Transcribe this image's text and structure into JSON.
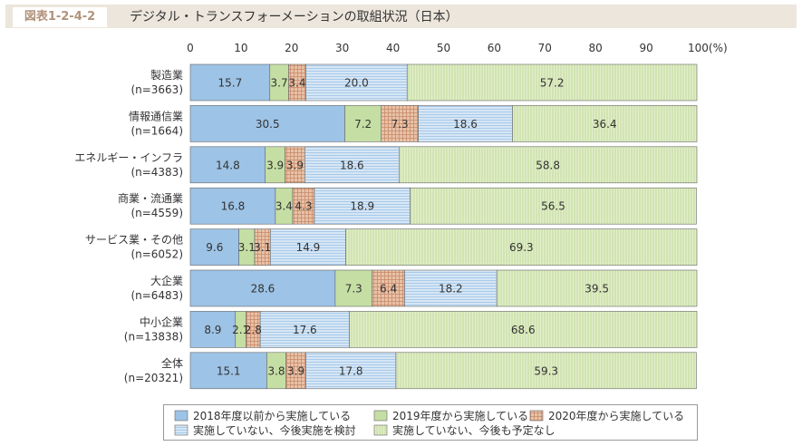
{
  "figure_number": "図表1-2-4-2",
  "figure_title": "デジタル・トランスフォーメーションの取組状況（日本）",
  "colors": {
    "s2018": "#9dc3e6",
    "s2019": "#c5dea4",
    "s2020": "#e8c2a8",
    "considering": "#d6e6f5",
    "none": "#e2eecb",
    "header_bg": "#ece6dc",
    "label_accent": "#b1927a"
  },
  "chart_data": {
    "type": "bar",
    "orientation": "horizontal",
    "stacked": true,
    "x_ticks": [
      "0",
      "10",
      "20",
      "30",
      "40",
      "50",
      "60",
      "70",
      "80",
      "90",
      "100(%)"
    ],
    "xlim": [
      0,
      100
    ],
    "grid": false,
    "legend_position": "bottom",
    "categories": [
      [
        "製造業",
        "(n=3663)"
      ],
      [
        "情報通信業",
        "(n=1664)"
      ],
      [
        "エネルギー・インフラ",
        "(n=4383)"
      ],
      [
        "商業・流通業",
        "(n=4559)"
      ],
      [
        "サービス業・その他",
        "(n=6052)"
      ],
      [
        "大企業",
        "(n=6483)"
      ],
      [
        "中小企業",
        "(n=13838)"
      ],
      [
        "全体",
        "(n=20321)"
      ]
    ],
    "series": [
      {
        "name": "2018年度以前から実施している",
        "key": "s2018",
        "pattern": "solid",
        "values": [
          15.7,
          30.5,
          14.8,
          16.8,
          9.6,
          28.6,
          8.9,
          15.1
        ]
      },
      {
        "name": "2019年度から実施している",
        "key": "s2019",
        "pattern": "solid",
        "values": [
          3.7,
          7.2,
          3.9,
          3.4,
          3.1,
          7.3,
          2.1,
          3.8
        ]
      },
      {
        "name": "2020年度から実施している",
        "key": "s2020",
        "pattern": "grid",
        "values": [
          3.4,
          7.3,
          3.9,
          4.3,
          3.1,
          6.4,
          2.8,
          3.9
        ]
      },
      {
        "name": "実施していない、今後実施を検討",
        "key": "considering",
        "pattern": "hlines",
        "values": [
          20.0,
          18.6,
          18.6,
          18.9,
          14.9,
          18.2,
          17.6,
          17.8
        ]
      },
      {
        "name": "実施していない、今後も予定なし",
        "key": "none",
        "pattern": "vlines",
        "values": [
          57.2,
          36.4,
          58.8,
          56.5,
          69.3,
          39.5,
          68.6,
          59.3
        ]
      }
    ]
  }
}
